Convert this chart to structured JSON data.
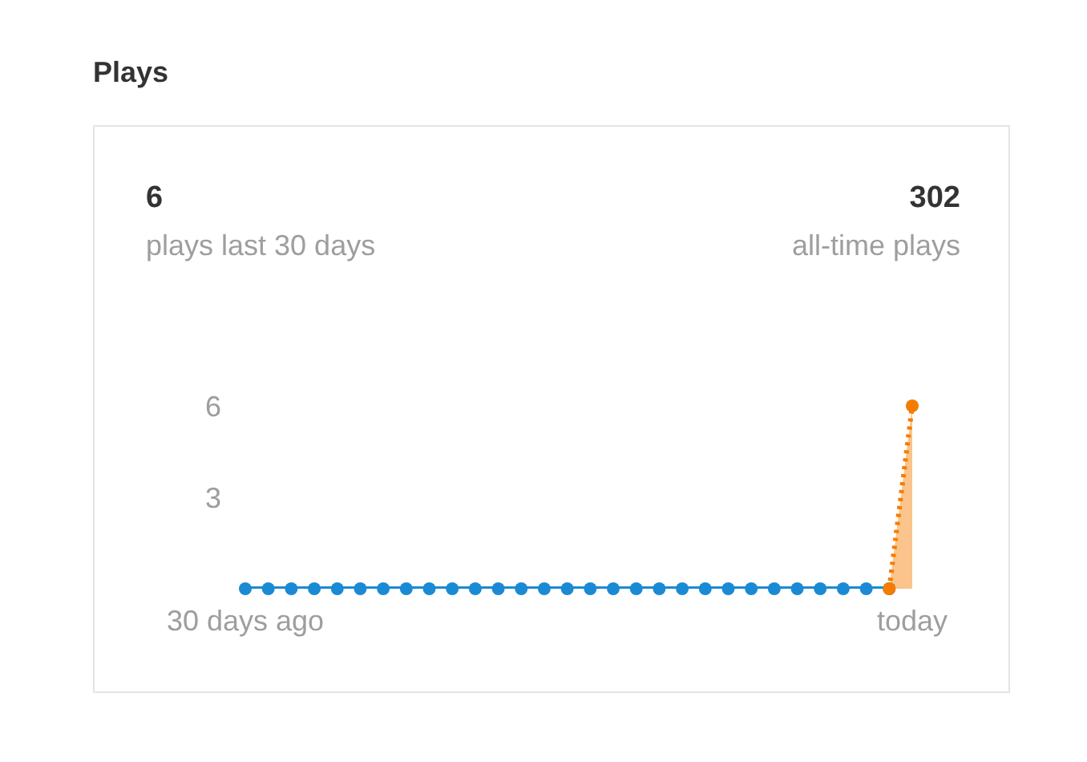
{
  "chart_data": {
    "type": "area",
    "title": "Plays",
    "annotations": [
      "6",
      "plays last 30 days",
      "302",
      "all-time plays"
    ],
    "categories": [
      "30 days ago",
      null,
      null,
      null,
      null,
      null,
      null,
      null,
      null,
      null,
      null,
      null,
      null,
      null,
      null,
      null,
      null,
      null,
      null,
      null,
      null,
      null,
      null,
      null,
      null,
      null,
      null,
      null,
      null,
      "today"
    ],
    "series": [
      {
        "type": "line",
        "color": "#1a8ad4",
        "line_style": "solid",
        "values": [
          0,
          0,
          0,
          0,
          0,
          0,
          0,
          0,
          0,
          0,
          0,
          0,
          0,
          0,
          0,
          0,
          0,
          0,
          0,
          0,
          0,
          0,
          0,
          0,
          0,
          0,
          0,
          0,
          0,
          null
        ]
      },
      {
        "color": "#f57c00",
        "line_style": "dotted",
        "values": [
          null,
          null,
          null,
          null,
          null,
          null,
          null,
          null,
          null,
          null,
          null,
          null,
          null,
          null,
          null,
          null,
          null,
          null,
          null,
          null,
          null,
          null,
          null,
          null,
          null,
          null,
          null,
          null,
          0,
          6
        ]
      }
    ],
    "ylim": [
      0,
      6
    ],
    "yticks": [
      3,
      6
    ],
    "grid": false,
    "legend": false,
    "marker": "circle"
  }
}
